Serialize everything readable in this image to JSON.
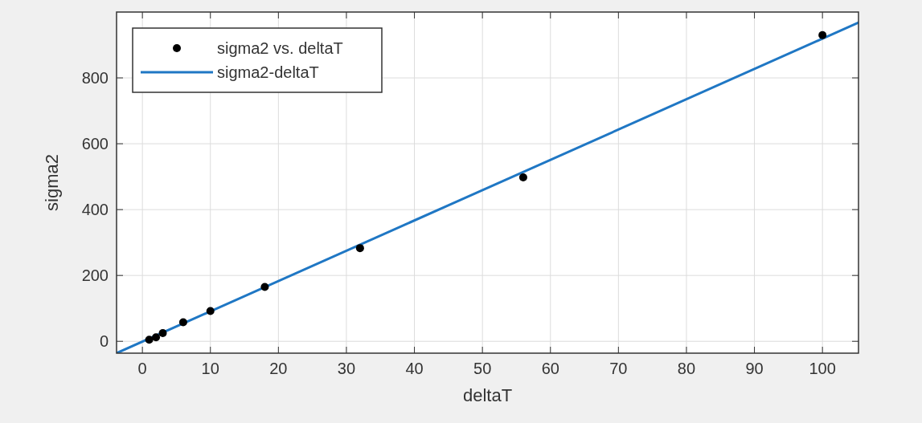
{
  "chart_data": {
    "type": "scatter",
    "xlabel": "deltaT",
    "ylabel": "sigma2",
    "xlim": [
      -3.8,
      105.3
    ],
    "ylim": [
      -36,
      1000
    ],
    "xticks": [
      0,
      10,
      20,
      30,
      40,
      50,
      60,
      70,
      80,
      90,
      100
    ],
    "yticks": [
      0,
      200,
      400,
      600,
      800
    ],
    "grid": true,
    "legend": "top left",
    "series": [
      {
        "name": "sigma2 vs. deltaT",
        "color": "#000000",
        "marker": "circle",
        "x": [
          1,
          2,
          3,
          6,
          10,
          18,
          32,
          56,
          100
        ],
        "values": [
          5,
          12,
          25,
          58,
          92,
          165,
          283,
          498,
          930
        ]
      },
      {
        "name": "sigma2-deltaT",
        "type": "line",
        "color": "#1f77c4",
        "marker": "none",
        "line_style": "solid",
        "x": [
          -3.8,
          105.3
        ],
        "values": [
          -36,
          968
        ]
      }
    ]
  }
}
